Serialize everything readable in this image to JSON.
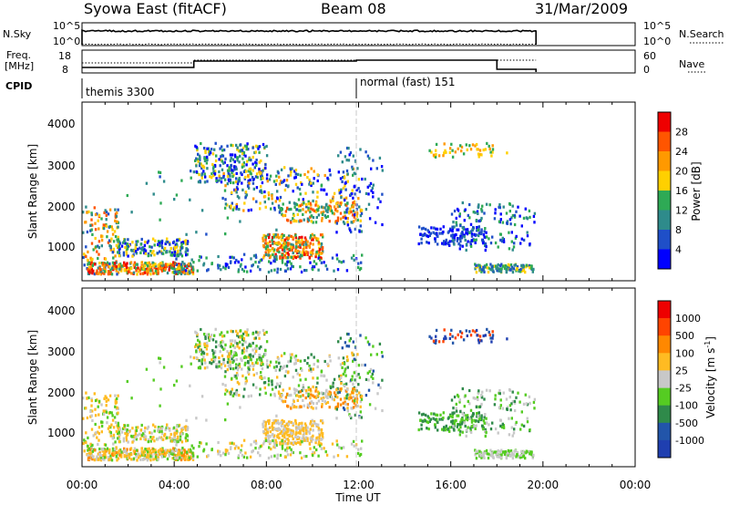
{
  "header": {
    "title": "Syowa East (fitACF)",
    "beam": "Beam 08",
    "date": "31/Mar/2009"
  },
  "small_panels": {
    "nsky_label": "N.Sky",
    "nsky_ticks": [
      "10^5",
      "10^0"
    ],
    "nsky_right_ticks": [
      "10^5",
      "10^0"
    ],
    "nsearch_label": "N.Search",
    "freq_label": [
      "Freq.",
      "[MHz]"
    ],
    "freq_ticks": [
      "18",
      "8"
    ],
    "nave_ticks": [
      "60",
      "0"
    ],
    "nave_label": "Nave",
    "cpid_label": "CPID",
    "cpid_segments": [
      {
        "label": "themis 3300"
      },
      {
        "label": "normal (fast) 151"
      }
    ]
  },
  "chart_data": [
    {
      "type": "heatmap",
      "name": "power-panel",
      "ylabel": "Slant Range [km]",
      "y_ticks": [
        "1000",
        "2000",
        "3000",
        "4000"
      ],
      "colorbar": {
        "label": "Power [dB]",
        "ticks": [
          "4",
          "8",
          "12",
          "16",
          "20",
          "24",
          "28"
        ],
        "colors": [
          "#0000ff",
          "#1f4fc8",
          "#2e8b8b",
          "#2eaa55",
          "#ffd000",
          "#ff9900",
          "#ff5500",
          "#ee0000"
        ]
      }
    },
    {
      "type": "heatmap",
      "name": "velocity-panel",
      "ylabel": "Slant Range [km]",
      "y_ticks": [
        "1000",
        "2000",
        "3000",
        "4000"
      ],
      "colorbar": {
        "label": "Velocity [m s",
        "label_sup": "-1",
        "label_end": "]",
        "ticks": [
          "1000",
          "500",
          "100",
          "25",
          "-25",
          "-100",
          "-500",
          "-1000"
        ],
        "colors": [
          "#ee0000",
          "#ff4400",
          "#ff8800",
          "#ffbb22",
          "#c8c8c8",
          "#55cc22",
          "#2f8a4a",
          "#2255aa",
          "#1f3fb0"
        ]
      }
    }
  ],
  "time_axis": {
    "ticks": [
      "00:00",
      "04:00",
      "08:00",
      "12:00",
      "16:00",
      "20:00",
      "00:00"
    ],
    "label": "Time UT"
  }
}
